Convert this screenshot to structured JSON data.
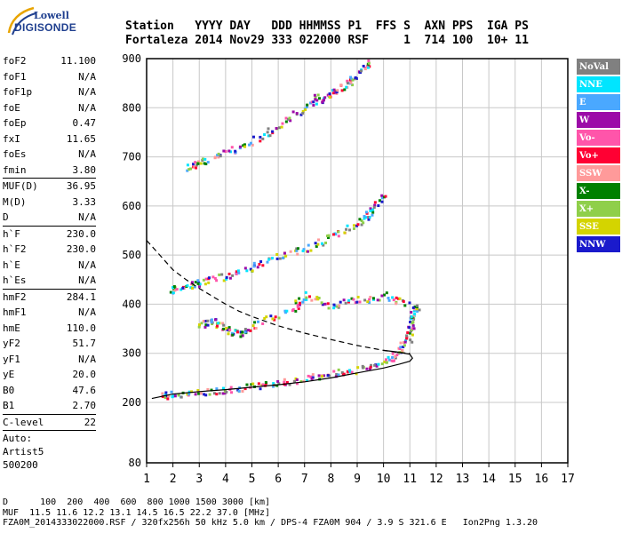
{
  "logo": {
    "line1": "Lowell",
    "line2": "DIGISONDE"
  },
  "header": {
    "line1": "Station   YYYY DAY   DDD HHMMSS P1  FFS S  AXN PPS  IGA PS",
    "line2": "Fortaleza 2014 Nov29 333 022000 RSF     1  714 100  10+ 11"
  },
  "params": [
    {
      "label": "foF2",
      "value": "11.100"
    },
    {
      "label": "foF1",
      "value": "N/A"
    },
    {
      "label": "foF1p",
      "value": "N/A"
    },
    {
      "label": "foE",
      "value": "N/A"
    },
    {
      "label": "foEp",
      "value": "0.47"
    },
    {
      "label": "fxI",
      "value": "11.65"
    },
    {
      "label": "foEs",
      "value": "N/A"
    },
    {
      "label": "fmin",
      "value": "3.80"
    },
    {
      "sep": true
    },
    {
      "label": "MUF(D)",
      "value": "36.95"
    },
    {
      "label": "M(D)",
      "value": "3.33"
    },
    {
      "label": "D",
      "value": "N/A"
    },
    {
      "sep": true
    },
    {
      "label": "h`F",
      "value": "230.0"
    },
    {
      "label": "h`F2",
      "value": "230.0"
    },
    {
      "label": "h`E",
      "value": "N/A"
    },
    {
      "label": "h`Es",
      "value": "N/A"
    },
    {
      "sep": true
    },
    {
      "label": "hmF2",
      "value": "284.1"
    },
    {
      "label": "hmF1",
      "value": "N/A"
    },
    {
      "label": "hmE",
      "value": "110.0"
    },
    {
      "label": "yF2",
      "value": "51.7"
    },
    {
      "label": "yF1",
      "value": "N/A"
    },
    {
      "label": "yE",
      "value": "20.0"
    },
    {
      "label": "B0",
      "value": "47.6"
    },
    {
      "label": "B1",
      "value": "2.70"
    },
    {
      "sep": true
    },
    {
      "label": "C-level",
      "value": "22"
    },
    {
      "sep": true
    }
  ],
  "auto": {
    "line1": "Auto:",
    "line2": "Artist5",
    "line3": "500200"
  },
  "legend": [
    {
      "label": "NoVal",
      "color": "#808080"
    },
    {
      "label": "NNE",
      "color": "#00e5ff"
    },
    {
      "label": "E",
      "color": "#4aa8ff"
    },
    {
      "label": "W",
      "color": "#9c0aa8"
    },
    {
      "label": "Vo-",
      "color": "#ff55aa"
    },
    {
      "label": "Vo+",
      "color": "#ff0033"
    },
    {
      "label": "SSW",
      "color": "#ff9a9a"
    },
    {
      "label": "X-",
      "color": "#008000"
    },
    {
      "label": "X+",
      "color": "#8fcf4a"
    },
    {
      "label": "SSE",
      "color": "#d4d400"
    },
    {
      "label": "NNW",
      "color": "#1a1acc"
    }
  ],
  "footer": {
    "line1": "D      100  200  400  600  800 1000 1500 3000 [km]",
    "line2": "MUF  11.5 11.6 12.2 13.1 14.5 16.5 22.2 37.0 [MHz]",
    "line3": "FZA0M_2014333022000.RSF / 320fx256h 50 kHz 5.0 km / DPS-4 FZA0M 904 / 3.9 S 321.6 E   Ion2Png 1.3.20"
  },
  "chart_data": {
    "type": "scatter",
    "xlim": [
      1,
      17
    ],
    "ylim": [
      80,
      900
    ],
    "xticks": [
      "1",
      "2",
      "3",
      "4",
      "5",
      "6",
      "7",
      "8",
      "9",
      "10",
      "11",
      "12",
      "13",
      "14",
      "15",
      "16",
      "17"
    ],
    "yticks": [
      "80",
      "200",
      "300",
      "400",
      "500",
      "600",
      "700",
      "800",
      "900"
    ],
    "grid": true,
    "note_scale": "y axis linear 200-900 km, 80 km at bottom edge",
    "profile": {
      "x": [
        1.2,
        2,
        3,
        4,
        5,
        6,
        7,
        8,
        9,
        10,
        10.6,
        11,
        11.1,
        11.0,
        10.5,
        10.0
      ],
      "y": [
        208,
        217,
        222,
        226,
        231,
        236,
        242,
        250,
        260,
        270,
        278,
        284,
        290,
        298,
        303,
        306
      ]
    },
    "dashed": {
      "x": [
        1.0,
        1.5,
        2,
        2.5,
        3,
        3.5,
        4,
        4.5,
        5,
        6,
        7,
        8,
        9,
        10,
        10.5,
        11
      ],
      "y": [
        530,
        500,
        470,
        450,
        432,
        416,
        400,
        386,
        375,
        356,
        341,
        328,
        316,
        306,
        302,
        300
      ]
    },
    "traces": [
      {
        "name": "F2 first hop",
        "x": [
          1.6,
          2,
          3,
          4,
          5,
          6,
          7,
          8,
          9,
          10,
          10.5,
          10.9,
          11.0,
          11.1,
          11.2
        ],
        "y": [
          215,
          218,
          222,
          228,
          234,
          242,
          250,
          260,
          268,
          285,
          300,
          330,
          360,
          385,
          395
        ]
      },
      {
        "name": "F2 second hop",
        "x": [
          1.8,
          2.5,
          3,
          4,
          5,
          6,
          7,
          8,
          9,
          9.5,
          10
        ],
        "y": [
          430,
          440,
          447,
          460,
          478,
          498,
          515,
          540,
          565,
          590,
          625
        ]
      },
      {
        "name": "F2 third hop",
        "x": [
          2.6,
          3,
          4,
          5,
          6,
          7,
          7.5
        ],
        "y": [
          680,
          690,
          710,
          735,
          765,
          800,
          830
        ]
      },
      {
        "name": "F2 third hop upper",
        "x": [
          7.5,
          8,
          8.5,
          9,
          9.5
        ],
        "y": [
          815,
          830,
          850,
          870,
          895
        ]
      },
      {
        "name": "spread F",
        "x": [
          3,
          3.5,
          4,
          4.5,
          5,
          6.5,
          7,
          8,
          9,
          10,
          11
        ],
        "y": [
          360,
          370,
          350,
          340,
          360,
          390,
          420,
          400,
          410,
          420,
          400
        ]
      }
    ]
  }
}
